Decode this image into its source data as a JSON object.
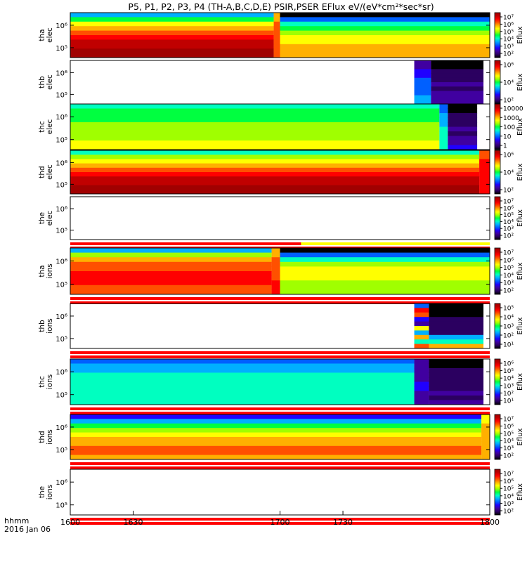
{
  "title": "P5, P1, P2, P3, P4 (TH-A,B,C,D,E) PSIR,PSER EFlux eV/(eV*cm²*sec*sr)",
  "time_axis": {
    "label_line1": "hhmm",
    "label_line2": "2016 Jan 06",
    "ticks": [
      "1600",
      "1630",
      "1700",
      "1730",
      "1800"
    ]
  },
  "colors": {
    "spectrum": [
      "#000000",
      "#2b0060",
      "#4000a0",
      "#2000ff",
      "#0060ff",
      "#00b0ff",
      "#00ffc0",
      "#00ff40",
      "#a0ff00",
      "#ffff00",
      "#ffb000",
      "#ff5000",
      "#ff0000",
      "#c00000",
      "#a00000"
    ],
    "flag_red": "#ff0000",
    "flag_yellow": "#ffff00",
    "fill_gap": "#ffffff"
  },
  "chart_data": [
    {
      "type": "heatmap",
      "probe": "tha",
      "species": "elec",
      "ylabel": "tha elec",
      "y_ticks": [
        "10⁶",
        "10⁵"
      ],
      "colorbar": {
        "label": "Eflux",
        "ticks": [
          "10⁷",
          "10⁶",
          "10⁵",
          "10⁴",
          "10³",
          "10²"
        ]
      },
      "x_range": [
        1600,
        1800
      ],
      "energy_rows": 10,
      "flag_bar": false,
      "gap_after": 1800,
      "segments": [
        {
          "from": 1600,
          "to": 1697,
          "levels": [
            5,
            7,
            9,
            10,
            11,
            12,
            13,
            13,
            14,
            14
          ]
        },
        {
          "from": 1697,
          "to": 1700,
          "levels": [
            10,
            10,
            11,
            11,
            11,
            11,
            11,
            11,
            11,
            11
          ]
        },
        {
          "from": 1700,
          "to": 1800,
          "levels": [
            0,
            4,
            6,
            7,
            8,
            9,
            9,
            10,
            10,
            10
          ]
        }
      ]
    },
    {
      "type": "heatmap",
      "probe": "thb",
      "species": "elec",
      "ylabel": "thb elec",
      "y_ticks": [
        "10⁶",
        "10⁵"
      ],
      "colorbar": {
        "label": "Eflux",
        "ticks": [
          "10⁶",
          "10⁴",
          "10²"
        ]
      },
      "x_range": [
        1600,
        1800
      ],
      "energy_rows": 10,
      "flag_bar": false,
      "gap_after": 1600,
      "segments": [
        {
          "from": 1600,
          "to": 1764,
          "levels": null
        },
        {
          "from": 1764,
          "to": 1772,
          "levels": [
            2,
            2,
            3,
            3,
            4,
            4,
            4,
            4,
            5,
            5
          ]
        },
        {
          "from": 1772,
          "to": 1797,
          "levels": [
            0,
            0,
            1,
            1,
            1,
            2,
            1,
            2,
            2,
            2
          ]
        }
      ]
    },
    {
      "type": "heatmap",
      "probe": "thc",
      "species": "elec",
      "ylabel": "thc elec",
      "y_ticks": [
        "10⁶",
        "10⁵"
      ],
      "colorbar": {
        "label": "Eflux",
        "ticks": [
          "10000",
          "1000",
          "100",
          "10",
          "1"
        ]
      },
      "x_range": [
        1600,
        1800
      ],
      "energy_rows": 10,
      "flag_bar": false,
      "gap_after": 1800,
      "segments": [
        {
          "from": 1600,
          "to": 1776,
          "levels": [
            6,
            7,
            7,
            7,
            8,
            8,
            8,
            8,
            9,
            9
          ]
        },
        {
          "from": 1776,
          "to": 1780,
          "levels": [
            4,
            4,
            5,
            5,
            5,
            6,
            6,
            6,
            6,
            6
          ]
        },
        {
          "from": 1780,
          "to": 1794,
          "levels": [
            0,
            0,
            1,
            1,
            1,
            2,
            1,
            2,
            2,
            3
          ]
        }
      ]
    },
    {
      "type": "heatmap",
      "probe": "thd",
      "species": "elec",
      "ylabel": "thd elec",
      "y_ticks": [
        "10⁶",
        "10⁵"
      ],
      "colorbar": {
        "label": "Eflux",
        "ticks": [
          "10⁶",
          "10⁴",
          "10²"
        ]
      },
      "x_range": [
        1600,
        1800
      ],
      "energy_rows": 10,
      "flag_bar": false,
      "gap_after": 1800,
      "segments": [
        {
          "from": 1600,
          "to": 1795,
          "levels": [
            6,
            8,
            9,
            10,
            11,
            12,
            13,
            13,
            14,
            14
          ]
        },
        {
          "from": 1795,
          "to": 1800,
          "levels": [
            11,
            11,
            12,
            12,
            12,
            12,
            12,
            12,
            12,
            12
          ]
        }
      ]
    },
    {
      "type": "heatmap",
      "probe": "the",
      "species": "elec",
      "ylabel": "the elec",
      "y_ticks": [
        "10⁶",
        "10⁵"
      ],
      "colorbar": {
        "label": "Eflux",
        "ticks": [
          "10⁷",
          "10⁶",
          "10⁵",
          "10⁴",
          "10³",
          "10²"
        ]
      },
      "x_range": [
        1600,
        1800
      ],
      "energy_rows": 10,
      "flag_bar": true,
      "gap_after": 1600,
      "segments": []
    },
    {
      "type": "heatmap",
      "probe": "tha",
      "species": "ions",
      "ylabel": "tha ions",
      "y_ticks": [
        "10⁶",
        "10⁵"
      ],
      "colorbar": {
        "label": "Eflux",
        "ticks": [
          "10⁷",
          "10⁶",
          "10⁵",
          "10⁴",
          "10³",
          "10²"
        ]
      },
      "x_range": [
        1600,
        1800
      ],
      "energy_rows": 10,
      "flag_bar": true,
      "gap_after": 1800,
      "segments": [
        {
          "from": 1600,
          "to": 1696,
          "levels": [
            5,
            8,
            10,
            11,
            11,
            12,
            12,
            12,
            11,
            11
          ]
        },
        {
          "from": 1696,
          "to": 1700,
          "levels": [
            10,
            10,
            11,
            11,
            11,
            11,
            11,
            12,
            12,
            12
          ]
        },
        {
          "from": 1700,
          "to": 1800,
          "levels": [
            0,
            4,
            6,
            8,
            9,
            9,
            9,
            8,
            8,
            8
          ]
        }
      ]
    },
    {
      "type": "heatmap",
      "probe": "thb",
      "species": "ions",
      "ylabel": "thb ions",
      "y_ticks": [
        "10⁶",
        "10⁵"
      ],
      "colorbar": {
        "label": "Eflux",
        "ticks": [
          "10⁵",
          "10⁴",
          "10³",
          "10²",
          "10¹"
        ]
      },
      "x_range": [
        1600,
        1800
      ],
      "energy_rows": 10,
      "flag_bar": true,
      "gap_after": 1600,
      "segments": [
        {
          "from": 1600,
          "to": 1764,
          "levels": null
        },
        {
          "from": 1764,
          "to": 1771,
          "levels": [
            4,
            12,
            11,
            3,
            2,
            9,
            5,
            10,
            6,
            11
          ]
        },
        {
          "from": 1771,
          "to": 1797,
          "levels": [
            0,
            0,
            0,
            1,
            1,
            1,
            1,
            5,
            6,
            10
          ]
        }
      ]
    },
    {
      "type": "heatmap",
      "probe": "thc",
      "species": "ions",
      "ylabel": "thc ions",
      "y_ticks": [
        "10⁶",
        "10⁵"
      ],
      "colorbar": {
        "label": "Eflux",
        "ticks": [
          "10⁶",
          "10⁵",
          "10⁴",
          "10³",
          "10²",
          "10¹"
        ]
      },
      "x_range": [
        1600,
        1800
      ],
      "energy_rows": 10,
      "flag_bar": true,
      "gap_after": 1800,
      "segments": [
        {
          "from": 1600,
          "to": 1764,
          "levels": [
            4,
            5,
            5,
            6,
            6,
            6,
            6,
            6,
            6,
            6
          ]
        },
        {
          "from": 1764,
          "to": 1771,
          "levels": [
            2,
            2,
            2,
            2,
            2,
            3,
            3,
            2,
            2,
            2
          ]
        },
        {
          "from": 1771,
          "to": 1797,
          "levels": [
            0,
            0,
            1,
            1,
            1,
            1,
            1,
            2,
            1,
            2
          ]
        }
      ]
    },
    {
      "type": "heatmap",
      "probe": "thd",
      "species": "ions",
      "ylabel": "thd ions",
      "y_ticks": [
        "10⁶",
        "10⁵"
      ],
      "colorbar": {
        "label": "Eflux",
        "ticks": [
          "10⁷",
          "10⁶",
          "10⁵",
          "10⁴",
          "10³",
          "10²"
        ]
      },
      "x_range": [
        1600,
        1800
      ],
      "energy_rows": 10,
      "flag_bar": true,
      "gap_after": 1800,
      "segments": [
        {
          "from": 1600,
          "to": 1796,
          "levels": [
            3,
            5,
            7,
            8,
            9,
            10,
            10,
            11,
            11,
            10
          ]
        },
        {
          "from": 1796,
          "to": 1800,
          "levels": [
            9,
            9,
            10,
            10,
            10,
            10,
            10,
            10,
            10,
            10
          ]
        }
      ]
    },
    {
      "type": "heatmap",
      "probe": "the",
      "species": "ions",
      "ylabel": "the ions",
      "y_ticks": [
        "10⁶",
        "10⁵"
      ],
      "colorbar": {
        "label": "Eflux",
        "ticks": [
          "10⁷",
          "10⁶",
          "10⁵",
          "10⁴",
          "10³",
          "10²"
        ]
      },
      "x_range": [
        1600,
        1800
      ],
      "energy_rows": 10,
      "flag_bar": true,
      "gap_after": 1600,
      "segments": []
    }
  ]
}
